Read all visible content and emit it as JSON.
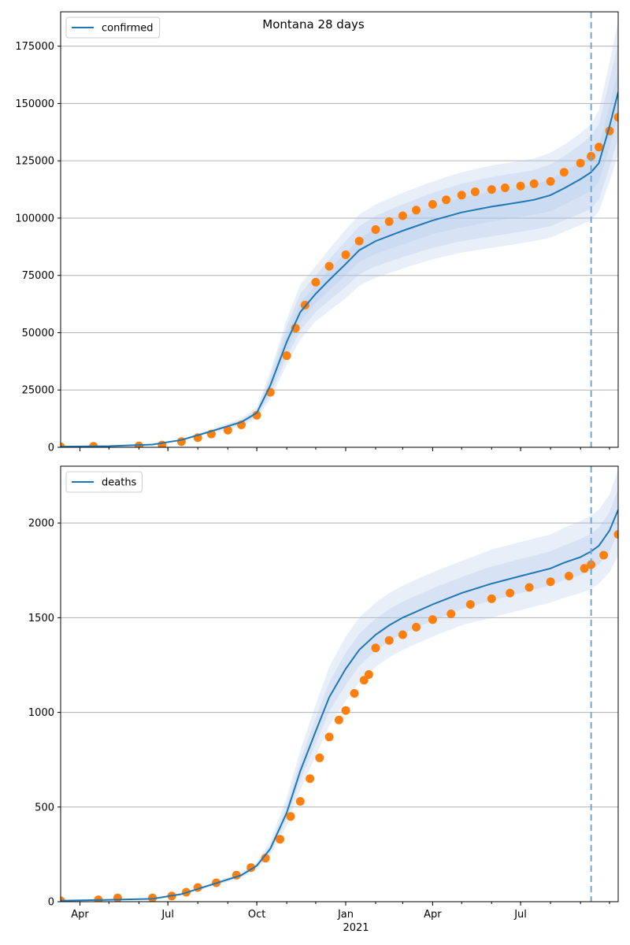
{
  "figure": {
    "title": "Montana 28 days"
  },
  "colors": {
    "model": "#1f77b4",
    "observed": "#ff7f0e",
    "band": "#aec7e8",
    "grid": "#b0b0b0",
    "vline": "#6fa8d6"
  },
  "xaxis": {
    "tick_labels": [
      "Apr",
      "Jul",
      "Oct",
      "Jan",
      "Apr",
      "Jul"
    ],
    "tick_dates": [
      "2020-04-01",
      "2020-07-01",
      "2020-10-01",
      "2021-01-01",
      "2021-04-01",
      "2021-07-01"
    ],
    "year_label": "2021",
    "minor_tick_dates": [
      "2020-04-01",
      "2020-05-01",
      "2020-06-01",
      "2020-07-01",
      "2020-08-01",
      "2020-09-01",
      "2020-10-01",
      "2020-11-01",
      "2020-12-01",
      "2021-01-01",
      "2021-02-01",
      "2021-03-01",
      "2021-04-01",
      "2021-05-01",
      "2021-06-01",
      "2021-07-01",
      "2021-08-01",
      "2021-09-01",
      "2021-10-01"
    ],
    "range": [
      "2020-03-12",
      "2021-10-10"
    ],
    "forecast_start": "2021-09-12"
  },
  "chart_data": [
    {
      "type": "line",
      "legend": {
        "label": "confirmed",
        "placement": "top-left"
      },
      "ylim": [
        0,
        190000
      ],
      "yticks": [
        0,
        25000,
        50000,
        75000,
        100000,
        125000,
        150000,
        175000
      ],
      "ytick_labels": [
        "0",
        "25000",
        "50000",
        "75000",
        "100000",
        "125000",
        "150000",
        "175000"
      ],
      "grid": "y",
      "model": {
        "x": [
          "2020-03-12",
          "2020-05-01",
          "2020-06-15",
          "2020-07-15",
          "2020-08-15",
          "2020-09-15",
          "2020-10-01",
          "2020-10-15",
          "2020-11-01",
          "2020-11-15",
          "2020-12-01",
          "2020-12-15",
          "2021-01-01",
          "2021-01-15",
          "2021-02-01",
          "2021-03-01",
          "2021-04-01",
          "2021-05-01",
          "2021-06-01",
          "2021-07-01",
          "2021-07-15",
          "2021-08-01",
          "2021-08-15",
          "2021-09-01",
          "2021-09-12",
          "2021-09-20",
          "2021-10-01",
          "2021-10-10"
        ],
        "y": [
          300,
          500,
          1200,
          3200,
          7000,
          11000,
          15000,
          27000,
          46000,
          59000,
          67000,
          73000,
          80000,
          86000,
          90000,
          94500,
          99000,
          102500,
          105000,
          107000,
          108000,
          110000,
          113000,
          117000,
          120000,
          124000,
          140000,
          155000
        ],
        "bands": [
          {
            "lower": [
              300,
              500,
              1200,
              3000,
              6500,
              10000,
              13500,
              23000,
              39000,
              51000,
              59000,
              64000,
              70000,
              75500,
              79000,
              83000,
              87000,
              90000,
              92000,
              94000,
              95000,
              96500,
              99000,
              102000,
              104000,
              108000,
              122000,
              135000
            ],
            "upper": [
              300,
              500,
              1200,
              3400,
              7500,
              12000,
              16500,
              31000,
              53000,
              67000,
              75000,
              82000,
              90000,
              96500,
              101000,
              106000,
              111000,
              115000,
              118000,
              120000,
              121000,
              123500,
              127000,
              132000,
              136000,
              141000,
              160000,
              176000
            ]
          },
          {
            "lower": [
              300,
              500,
              1200,
              3100,
              6700,
              10500,
              14200,
              25000,
              42000,
              55000,
              63000,
              68500,
              75000,
              81000,
              84500,
              88500,
              93000,
              96000,
              98500,
              100500,
              101500,
              103000,
              106000,
              109500,
              112000,
              116000,
              131000,
              145000
            ],
            "upper": [
              300,
              500,
              1200,
              3300,
              7300,
              11500,
              15800,
              29000,
              50000,
              63000,
              71000,
              77500,
              85000,
              91000,
              95500,
              100500,
              105000,
              109000,
              111500,
              113500,
              114500,
              117000,
              120000,
              124500,
              128000,
              132000,
              149000,
              165000
            ]
          },
          {
            "lower": [
              300,
              500,
              1200,
              2800,
              6000,
              9300,
              12500,
              21000,
              36000,
              47000,
              55000,
              59500,
              65000,
              70500,
              74000,
              78000,
              82000,
              85000,
              87000,
              89000,
              90000,
              91500,
              94000,
              97000,
              99000,
              103000,
              116000,
              128000
            ],
            "upper": [
              300,
              500,
              1200,
              3600,
              8000,
              12700,
              17500,
              33000,
              56000,
              71000,
              79000,
              86500,
              95000,
              101500,
              106000,
              111000,
              116000,
              120000,
              123000,
              125000,
              126000,
              128500,
              132000,
              137000,
              141000,
              147000,
              168000,
              186000
            ]
          }
        ]
      },
      "observed": {
        "x": [
          "2020-03-12",
          "2020-04-15",
          "2020-06-01",
          "2020-06-25",
          "2020-07-15",
          "2020-08-01",
          "2020-08-15",
          "2020-09-01",
          "2020-09-15",
          "2020-10-01",
          "2020-10-15",
          "2020-11-01",
          "2020-11-10",
          "2020-11-20",
          "2020-12-01",
          "2020-12-15",
          "2021-01-01",
          "2021-01-15",
          "2021-02-01",
          "2021-02-15",
          "2021-03-01",
          "2021-03-15",
          "2021-04-01",
          "2021-04-15",
          "2021-05-01",
          "2021-05-15",
          "2021-06-01",
          "2021-06-15",
          "2021-07-01",
          "2021-07-15",
          "2021-08-01",
          "2021-08-15",
          "2021-09-01",
          "2021-09-12",
          "2021-09-20",
          "2021-10-01",
          "2021-10-10"
        ],
        "y": [
          200,
          400,
          600,
          1000,
          2500,
          4200,
          5800,
          7500,
          9800,
          14000,
          24000,
          40000,
          52000,
          62000,
          72000,
          79000,
          84000,
          90000,
          95000,
          98500,
          101000,
          103500,
          106000,
          108000,
          110000,
          111500,
          112500,
          113200,
          114000,
          115000,
          116000,
          120000,
          124000,
          127000,
          131000,
          138000,
          144000
        ]
      }
    },
    {
      "type": "line",
      "legend": {
        "label": "deaths",
        "placement": "top-left"
      },
      "ylim": [
        0,
        2300
      ],
      "yticks": [
        0,
        500,
        1000,
        1500,
        2000
      ],
      "ytick_labels": [
        "0",
        "500",
        "1000",
        "1500",
        "2000"
      ],
      "grid": "y",
      "model": {
        "x": [
          "2020-03-12",
          "2020-05-01",
          "2020-06-15",
          "2020-07-15",
          "2020-08-15",
          "2020-09-15",
          "2020-10-01",
          "2020-10-15",
          "2020-11-01",
          "2020-11-15",
          "2020-12-01",
          "2020-12-15",
          "2021-01-01",
          "2021-01-15",
          "2021-02-01",
          "2021-02-15",
          "2021-03-01",
          "2021-04-01",
          "2021-05-01",
          "2021-06-01",
          "2021-07-01",
          "2021-08-01",
          "2021-08-15",
          "2021-09-01",
          "2021-09-12",
          "2021-09-20",
          "2021-10-01",
          "2021-10-10"
        ],
        "y": [
          5,
          10,
          15,
          40,
          90,
          140,
          190,
          280,
          470,
          690,
          900,
          1080,
          1230,
          1330,
          1410,
          1460,
          1500,
          1570,
          1630,
          1680,
          1720,
          1760,
          1790,
          1820,
          1850,
          1880,
          1960,
          2070
        ],
        "bands": [
          {
            "lower": [
              5,
              10,
              15,
              35,
              80,
              125,
              170,
              245,
              400,
              590,
              770,
              930,
              1060,
              1160,
              1240,
              1290,
              1330,
              1400,
              1460,
              1500,
              1540,
              1580,
              1605,
              1630,
              1650,
              1680,
              1740,
              1830
            ],
            "upper": [
              5,
              10,
              15,
              45,
              100,
              155,
              210,
              320,
              550,
              800,
              1040,
              1240,
              1400,
              1500,
              1580,
              1630,
              1670,
              1740,
              1800,
              1860,
              1900,
              1940,
              1975,
              2010,
              2040,
              2070,
              2150,
              2280
            ]
          },
          {
            "lower": [
              5,
              10,
              15,
              37,
              85,
              132,
              180,
              262,
              435,
              640,
              835,
              1005,
              1145,
              1245,
              1325,
              1375,
              1415,
              1485,
              1545,
              1590,
              1630,
              1670,
              1698,
              1725,
              1750,
              1780,
              1850,
              1950
            ],
            "upper": [
              5,
              10,
              15,
              43,
              95,
              148,
              200,
              300,
              510,
              745,
              970,
              1160,
              1315,
              1415,
              1495,
              1545,
              1585,
              1655,
              1715,
              1770,
              1810,
              1850,
              1882,
              1915,
              1945,
              1975,
              2060,
              2180
            ]
          }
        ]
      },
      "observed": {
        "x": [
          "2020-03-12",
          "2020-04-20",
          "2020-05-10",
          "2020-06-15",
          "2020-07-05",
          "2020-07-20",
          "2020-08-01",
          "2020-08-20",
          "2020-09-10",
          "2020-09-25",
          "2020-10-10",
          "2020-10-25",
          "2020-11-05",
          "2020-11-15",
          "2020-11-25",
          "2020-12-05",
          "2020-12-15",
          "2020-12-25",
          "2021-01-01",
          "2021-01-10",
          "2021-01-20",
          "2021-01-25",
          "2021-02-01",
          "2021-02-15",
          "2021-03-01",
          "2021-03-15",
          "2021-04-01",
          "2021-04-20",
          "2021-05-10",
          "2021-06-01",
          "2021-06-20",
          "2021-07-10",
          "2021-08-01",
          "2021-08-20",
          "2021-09-05",
          "2021-09-12",
          "2021-09-25",
          "2021-10-10"
        ],
        "y": [
          5,
          10,
          20,
          20,
          30,
          50,
          75,
          100,
          140,
          180,
          230,
          330,
          450,
          530,
          650,
          760,
          870,
          960,
          1010,
          1100,
          1170,
          1200,
          1340,
          1380,
          1410,
          1450,
          1490,
          1520,
          1570,
          1600,
          1630,
          1660,
          1690,
          1720,
          1760,
          1780,
          1830,
          1940
        ]
      }
    }
  ]
}
